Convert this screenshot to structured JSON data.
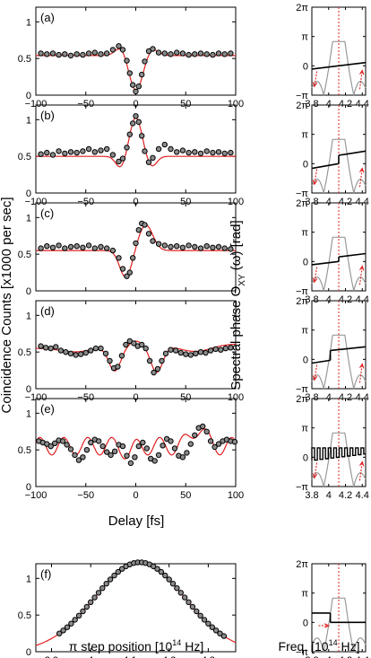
{
  "labels": {
    "left_ylabel": "Coincidence Counts [x1000 per sec]",
    "left_xlabel": "Delay [fs]",
    "bottom_left_xlabel": "π step position [10",
    "bottom_left_xlabel_exp": "14",
    "bottom_left_xlabel_end": " Hz]",
    "right_ylabel": "Spectral phase Θ",
    "right_ylabel_sub": "XY",
    "right_ylabel_end": " (ω) [rad]",
    "right_xlabel": "Freq. [10",
    "right_xlabel_exp": "14",
    "right_xlabel_end": " Hz]"
  },
  "colors": {
    "data_points": "#8c8c8c",
    "fit_line": "#e02020",
    "phase_line": "#000000",
    "spectrum": "#999999",
    "marker": "#e02020"
  },
  "chart_data": [
    {
      "type": "scatter",
      "panel": "(a)",
      "xlim": [
        -100,
        100
      ],
      "ylim": [
        0,
        1.2
      ],
      "xticks": [
        "-100",
        "-50",
        "0",
        "50",
        "100"
      ],
      "yticks": [
        "0",
        "0.5",
        "1"
      ],
      "series": [
        {
          "kind": "points",
          "x": [
            -95,
            -89,
            -83,
            -77,
            -71,
            -65,
            -59,
            -53,
            -47,
            -41,
            -35,
            -29,
            -23,
            -17,
            -13,
            -9,
            -6,
            -3,
            0,
            3,
            6,
            9,
            13,
            17,
            23,
            29,
            35,
            41,
            47,
            53,
            59,
            65,
            71,
            77,
            83,
            89,
            95
          ],
          "y": [
            0.57,
            0.56,
            0.57,
            0.55,
            0.56,
            0.54,
            0.56,
            0.55,
            0.57,
            0.58,
            0.56,
            0.57,
            0.62,
            0.67,
            0.62,
            0.47,
            0.3,
            0.14,
            0.05,
            0.12,
            0.28,
            0.46,
            0.6,
            0.63,
            0.58,
            0.57,
            0.56,
            0.58,
            0.57,
            0.55,
            0.56,
            0.57,
            0.56,
            0.55,
            0.57,
            0.56,
            0.57
          ]
        },
        {
          "kind": "fit",
          "model": {
            "b": 0.54,
            "terms": [
              [
                -0.48,
                0,
                7
              ],
              [
                0.13,
                -14,
                6
              ],
              [
                0.1,
                16,
                6
              ]
            ]
          }
        }
      ]
    },
    {
      "type": "scatter",
      "panel": "(b)",
      "xlim": [
        -100,
        100
      ],
      "ylim": [
        0,
        1.2
      ],
      "xticks": [
        "-100",
        "-50",
        "0",
        "50",
        "100"
      ],
      "yticks": [
        "0",
        "0.5",
        "1"
      ],
      "series": [
        {
          "kind": "points",
          "x": [
            -95,
            -89,
            -83,
            -77,
            -71,
            -65,
            -59,
            -53,
            -47,
            -41,
            -35,
            -29,
            -23,
            -17,
            -13,
            -9,
            -6,
            -3,
            0,
            3,
            6,
            9,
            13,
            17,
            23,
            29,
            35,
            41,
            47,
            53,
            59,
            65,
            71,
            77,
            83,
            89,
            95
          ],
          "y": [
            0.53,
            0.55,
            0.52,
            0.57,
            0.54,
            0.56,
            0.55,
            0.57,
            0.6,
            0.56,
            0.58,
            0.6,
            0.52,
            0.43,
            0.47,
            0.62,
            0.8,
            0.95,
            1.05,
            0.97,
            0.78,
            0.57,
            0.42,
            0.48,
            0.6,
            0.66,
            0.6,
            0.56,
            0.58,
            0.55,
            0.56,
            0.54,
            0.57,
            0.55,
            0.56,
            0.54,
            0.55
          ]
        },
        {
          "kind": "fit",
          "model": {
            "b": 0.5,
            "terms": [
              [
                0.53,
                0,
                6
              ],
              [
                -0.16,
                -15,
                5
              ],
              [
                -0.14,
                16,
                5
              ]
            ]
          }
        }
      ]
    },
    {
      "type": "scatter",
      "panel": "(c)",
      "xlim": [
        -100,
        100
      ],
      "ylim": [
        0,
        1.2
      ],
      "xticks": [
        "-100",
        "-50",
        "0",
        "50",
        "100"
      ],
      "yticks": [
        "0",
        "0.5",
        "1"
      ],
      "series": [
        {
          "kind": "points",
          "x": [
            -95,
            -89,
            -83,
            -77,
            -71,
            -65,
            -59,
            -53,
            -47,
            -41,
            -35,
            -29,
            -23,
            -17,
            -13,
            -9,
            -6,
            -3,
            0,
            3,
            6,
            9,
            13,
            17,
            23,
            29,
            35,
            41,
            47,
            53,
            59,
            65,
            71,
            77,
            83,
            89,
            95
          ],
          "y": [
            0.58,
            0.61,
            0.59,
            0.62,
            0.58,
            0.6,
            0.61,
            0.59,
            0.62,
            0.58,
            0.6,
            0.58,
            0.55,
            0.45,
            0.3,
            0.2,
            0.25,
            0.45,
            0.65,
            0.83,
            0.92,
            0.9,
            0.78,
            0.68,
            0.64,
            0.62,
            0.6,
            0.61,
            0.59,
            0.62,
            0.6,
            0.58,
            0.61,
            0.59,
            0.6,
            0.58,
            0.57
          ]
        },
        {
          "kind": "fit",
          "model": {
            "b": 0.55,
            "terms": [
              [
                -0.37,
                -10,
                6
              ],
              [
                0.35,
                10,
                7
              ]
            ]
          }
        }
      ]
    },
    {
      "type": "scatter",
      "panel": "(d)",
      "xlim": [
        -100,
        100
      ],
      "ylim": [
        0,
        1.2
      ],
      "xticks": [
        "-100",
        "-50",
        "0",
        "50",
        "100"
      ],
      "yticks": [
        "0",
        "0.5",
        "1"
      ],
      "series": [
        {
          "kind": "points",
          "x": [
            -95,
            -90,
            -85,
            -80,
            -75,
            -70,
            -65,
            -60,
            -55,
            -50,
            -45,
            -40,
            -35,
            -30,
            -26,
            -22,
            -18,
            -14,
            -10,
            -6,
            -2,
            2,
            6,
            10,
            14,
            18,
            22,
            26,
            30,
            35,
            40,
            45,
            50,
            55,
            60,
            65,
            70,
            75,
            80,
            85,
            90,
            95
          ],
          "y": [
            0.58,
            0.56,
            0.55,
            0.57,
            0.52,
            0.5,
            0.48,
            0.46,
            0.47,
            0.49,
            0.52,
            0.55,
            0.55,
            0.48,
            0.38,
            0.28,
            0.3,
            0.45,
            0.6,
            0.65,
            0.62,
            0.58,
            0.6,
            0.55,
            0.38,
            0.22,
            0.27,
            0.38,
            0.48,
            0.53,
            0.52,
            0.49,
            0.47,
            0.46,
            0.48,
            0.5,
            0.49,
            0.52,
            0.54,
            0.53,
            0.55,
            0.56
          ]
        },
        {
          "kind": "fit",
          "model": {
            "b": 0.58,
            "lin": 0.0003,
            "terms": [
              [
                -0.06,
                -60,
                15
              ],
              [
                -0.33,
                -21,
                6
              ],
              [
                0.07,
                0,
                6
              ],
              [
                -0.36,
                21,
                6
              ],
              [
                -0.09,
                60,
                15
              ]
            ]
          }
        }
      ]
    },
    {
      "type": "scatter",
      "panel": "(e)",
      "xlim": [
        -100,
        100
      ],
      "ylim": [
        0,
        1.2
      ],
      "xticks": [
        "-100",
        "-50",
        "0",
        "50",
        "100"
      ],
      "yticks": [
        "0",
        "0.5",
        "1"
      ],
      "series": [
        {
          "kind": "points",
          "x": [
            -97,
            -93,
            -89,
            -85,
            -81,
            -77,
            -73,
            -69,
            -65,
            -61,
            -57,
            -53,
            -49,
            -45,
            -41,
            -37,
            -33,
            -29,
            -25,
            -21,
            -17,
            -13,
            -9,
            -5,
            -1,
            3,
            7,
            11,
            15,
            19,
            23,
            27,
            31,
            35,
            39,
            43,
            47,
            51,
            55,
            59,
            63,
            67,
            71,
            75,
            79,
            83,
            87,
            91,
            95,
            99
          ],
          "y": [
            0.62,
            0.6,
            0.58,
            0.55,
            0.59,
            0.63,
            0.62,
            0.57,
            0.51,
            0.43,
            0.36,
            0.4,
            0.5,
            0.6,
            0.64,
            0.62,
            0.55,
            0.47,
            0.43,
            0.48,
            0.57,
            0.55,
            0.42,
            0.32,
            0.4,
            0.55,
            0.6,
            0.52,
            0.38,
            0.35,
            0.43,
            0.56,
            0.65,
            0.62,
            0.52,
            0.42,
            0.4,
            0.46,
            0.58,
            0.7,
            0.8,
            0.82,
            0.75,
            0.62,
            0.54,
            0.58,
            0.62,
            0.64,
            0.62,
            0.61
          ]
        },
        {
          "kind": "fit",
          "model": {
            "b": 0.55,
            "cos": [
              0.12,
              24
            ],
            "terms": [
              [
                -0.08,
                -7,
                5
              ],
              [
                0.25,
                62,
                7
              ]
            ]
          }
        }
      ]
    },
    {
      "type": "scatter",
      "panel": "(f)",
      "xlim": [
        3.86,
        4.37
      ],
      "ylim": [
        0,
        1.2
      ],
      "xticks": [
        "3.9",
        "4",
        "4.1",
        "4.2",
        "4.3"
      ],
      "yticks": [
        "0",
        "0.5",
        "1"
      ],
      "series": [
        {
          "kind": "points_model",
          "x_start": 3.92,
          "x_end": 4.34,
          "step": 0.01,
          "model": {
            "b": 0.0,
            "terms": [
              [
                1.22,
                4.125,
                0.115
              ]
            ]
          }
        },
        {
          "kind": "fit",
          "model": {
            "b": 0.0,
            "terms": [
              [
                1.22,
                4.125,
                0.115
              ]
            ]
          }
        }
      ]
    },
    {
      "type": "line",
      "panel": "right",
      "xlim": [
        3.8,
        4.44
      ],
      "ylim": [
        "-π",
        "2π"
      ],
      "xticks": [
        "3.8",
        "4",
        "4.2",
        "4.4"
      ],
      "yticks": [
        "−π",
        "0",
        "π",
        "2π"
      ],
      "center_frequency": 4.12,
      "phase_curves": [
        {
          "panel": "(a)",
          "segments": [
            [
              [
                3.8,
                -0.35
              ],
              [
                4.44,
                0.35
              ]
            ]
          ],
          "arrows": [
            {
              "from": [
                3.86,
                -0.6
              ],
              "to": [
                3.83,
                -2.2
              ]
            },
            {
              "from": [
                4.37,
                -2.5
              ],
              "to": [
                4.4,
                -0.5
              ]
            }
          ]
        },
        {
          "panel": "(b)",
          "segments": [
            [
              [
                3.8,
                -0.5
              ],
              [
                4.12,
                0.0
              ]
            ],
            [
              [
                4.12,
                0.9
              ],
              [
                4.44,
                1.35
              ]
            ]
          ],
          "arrows": [
            {
              "from": [
                3.86,
                -0.6
              ],
              "to": [
                3.83,
                -2.2
              ]
            },
            {
              "from": [
                4.37,
                -2.5
              ],
              "to": [
                4.4,
                -0.5
              ]
            }
          ]
        },
        {
          "panel": "(c)",
          "segments": [
            [
              [
                3.8,
                -0.35
              ],
              [
                4.12,
                0.0
              ]
            ],
            [
              [
                4.12,
                0.5
              ],
              [
                4.44,
                0.85
              ]
            ]
          ],
          "arrows": [
            {
              "from": [
                3.86,
                -0.6
              ],
              "to": [
                3.83,
                -2.2
              ]
            },
            {
              "from": [
                4.37,
                -2.5
              ],
              "to": [
                4.4,
                -0.5
              ]
            }
          ]
        },
        {
          "panel": "(d)",
          "segments": [
            [
              [
                3.8,
                -0.4
              ],
              [
                4.02,
                -0.1
              ]
            ],
            [
              [
                4.02,
                0.95
              ],
              [
                4.44,
                1.35
              ]
            ]
          ],
          "arrows": [
            {
              "from": [
                3.86,
                -0.6
              ],
              "to": [
                3.83,
                -2.2
              ]
            },
            {
              "from": [
                4.37,
                -2.5
              ],
              "to": [
                4.4,
                -0.5
              ]
            }
          ]
        },
        {
          "panel": "(e)",
          "square_wave": {
            "x0": 3.8,
            "x1": 4.44,
            "period": 0.065,
            "low_start": -0.3,
            "low_end": 0.4,
            "high": 1.0
          },
          "arrows": [
            {
              "from": [
                3.86,
                -0.6
              ],
              "to": [
                3.83,
                -2.2
              ]
            },
            {
              "from": [
                4.37,
                -2.5
              ],
              "to": [
                4.4,
                -0.5
              ]
            }
          ]
        },
        {
          "panel": "(f)",
          "segments": [
            [
              [
                3.8,
                1.0
              ],
              [
                4.02,
                1.0
              ]
            ],
            [
              [
                4.02,
                0.0
              ],
              [
                4.44,
                0.0
              ]
            ]
          ],
          "arrows": [
            {
              "from": [
                3.88,
                -0.35
              ],
              "to": [
                4.0,
                -0.35
              ]
            }
          ]
        }
      ]
    }
  ]
}
